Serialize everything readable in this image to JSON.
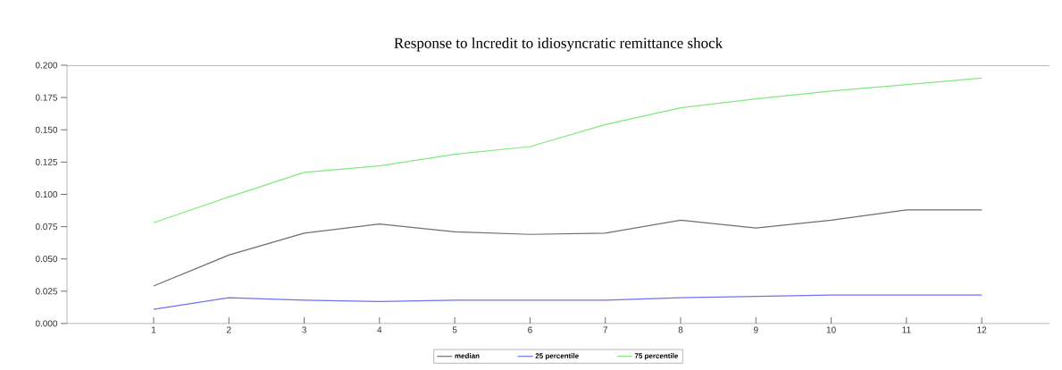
{
  "chart_data": {
    "type": "line",
    "title": "Response to lncredit to idiosyncratic remittance shock",
    "x": [
      1,
      2,
      3,
      4,
      5,
      6,
      7,
      8,
      9,
      10,
      11,
      12
    ],
    "series": [
      {
        "name": "median",
        "color": "#6e6e6e",
        "values": [
          0.029,
          0.053,
          0.07,
          0.077,
          0.071,
          0.069,
          0.07,
          0.08,
          0.074,
          0.08,
          0.088,
          0.088
        ]
      },
      {
        "name": "25 percentile",
        "color": "#7070f0",
        "values": [
          0.011,
          0.02,
          0.018,
          0.017,
          0.018,
          0.018,
          0.018,
          0.02,
          0.021,
          0.022,
          0.022,
          0.022
        ]
      },
      {
        "name": "75 percentile",
        "color": "#80e880",
        "values": [
          0.078,
          0.098,
          0.117,
          0.122,
          0.131,
          0.137,
          0.154,
          0.167,
          0.174,
          0.18,
          0.185,
          0.19
        ]
      }
    ],
    "xlim": [
      -0.15,
      12.9
    ],
    "ylim": [
      0,
      0.2
    ],
    "xticks": [
      1,
      2,
      3,
      4,
      5,
      6,
      7,
      8,
      9,
      10,
      11,
      12
    ],
    "yticks": [
      {
        "value": 0,
        "label": "0.000"
      },
      {
        "value": 0.025,
        "label": "0.025"
      },
      {
        "value": 0.05,
        "label": "0.050"
      },
      {
        "value": 0.075,
        "label": "0.075"
      },
      {
        "value": 0.1,
        "label": "0.100"
      },
      {
        "value": 0.125,
        "label": "0.125"
      },
      {
        "value": 0.15,
        "label": "0.150"
      },
      {
        "value": 0.175,
        "label": "0.175"
      },
      {
        "value": 0.2,
        "label": "0.200"
      }
    ],
    "legend": "bottom",
    "grid": false,
    "marker": "none",
    "line_style": "solid"
  }
}
